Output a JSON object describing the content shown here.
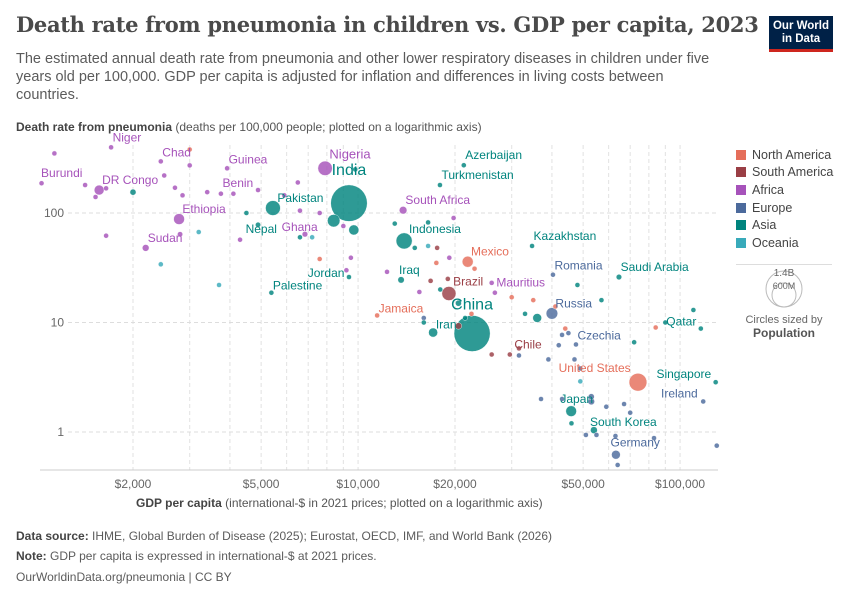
{
  "header": {
    "title": "Death rate from pneumonia in children vs. GDP per capita, 2023",
    "subtitle": "The estimated annual death rate from pneumonia and other lower respiratory diseases in children under five years old per 100,000. GDP per capita is adjusted for inflation and differences in living costs between countries.",
    "logo": "Our World in Data"
  },
  "footer": {
    "source_label": "Data source:",
    "source": "IHME, Global Burden of Disease (2025); Eurostat, OECD, IMF, and World Bank (2026)",
    "note_label": "Note:",
    "note": "GDP per capita is expressed in international-$ at 2021 prices.",
    "url": "OurWorldinData.org/pneumonia | CC BY"
  },
  "chart_data": {
    "type": "scatter",
    "title": "Death rate from pneumonia in children vs. GDP per capita, 2023",
    "ylabel_bold": "Death rate from pneumonia",
    "ylabel": "(deaths per 100,000 people; plotted on a logarithmic axis)",
    "xlabel_bold": "GDP per capita",
    "xlabel": "(international-$ in 2021 prices; plotted on a logarithmic axis)",
    "x_scale": "log",
    "y_scale": "log",
    "xlim": [
      1030,
      130000
    ],
    "ylim": [
      0.45,
      420
    ],
    "x_ticks": [
      {
        "v": 2000,
        "label": "$2,000"
      },
      {
        "v": 5000,
        "label": "$5,000"
      },
      {
        "v": 10000,
        "label": "$10,000"
      },
      {
        "v": 20000,
        "label": "$20,000"
      },
      {
        "v": 50000,
        "label": "$50,000"
      },
      {
        "v": 100000,
        "label": "$100,000"
      }
    ],
    "y_ticks": [
      {
        "v": 1,
        "label": "1"
      },
      {
        "v": 10,
        "label": "10"
      },
      {
        "v": 100,
        "label": "100"
      }
    ],
    "grid": true,
    "legend_position": "right",
    "regions": [
      {
        "name": "North America",
        "color": "#E56E5A"
      },
      {
        "name": "South America",
        "color": "#9A3E45"
      },
      {
        "name": "Africa",
        "color": "#A652BA"
      },
      {
        "name": "Europe",
        "color": "#4C6A9C"
      },
      {
        "name": "Asia",
        "color": "#00847E"
      },
      {
        "name": "Oceania",
        "color": "#38AABA"
      }
    ],
    "size_legend": {
      "title": "Circles sized by",
      "variable": "Population",
      "large": "1.4B",
      "small": "600M"
    },
    "points": [
      {
        "label": "Niger",
        "r": "Africa",
        "x": 1710,
        "y": 398,
        "pop": 27
      },
      {
        "label": "Chad",
        "r": "Africa",
        "x": 2440,
        "y": 296,
        "pop": 19
      },
      {
        "label": "Guinea",
        "r": "Africa",
        "x": 3920,
        "y": 256,
        "pop": 14
      },
      {
        "label": "Burundi",
        "r": "Africa",
        "x": 1040,
        "y": 187,
        "pop": 14
      },
      {
        "label": "DR Congo",
        "r": "Africa",
        "x": 1570,
        "y": 162,
        "pop": 105
      },
      {
        "label": "Benin",
        "r": "Africa",
        "x": 4890,
        "y": 162,
        "pop": 14
      },
      {
        "label": "Ethiopia",
        "r": "Africa",
        "x": 2780,
        "y": 88,
        "pop": 128
      },
      {
        "label": "Sudan",
        "r": "Africa",
        "x": 2190,
        "y": 48,
        "pop": 50
      },
      {
        "label": "Nigeria",
        "r": "Africa",
        "x": 7900,
        "y": 256,
        "pop": 225
      },
      {
        "label": "India",
        "r": "Asia",
        "x": 9370,
        "y": 123,
        "pop": 1440
      },
      {
        "label": "Pakistan",
        "r": "Asia",
        "x": 5440,
        "y": 111,
        "pop": 240
      },
      {
        "label": "Nepal",
        "r": "Asia",
        "x": 4890,
        "y": 78,
        "pop": 30
      },
      {
        "label": "Ghana",
        "r": "Africa",
        "x": 6840,
        "y": 64,
        "pop": 34
      },
      {
        "label": "Palestine",
        "r": "Asia",
        "x": 5380,
        "y": 18.7,
        "pop": 5
      },
      {
        "label": "Jordan",
        "r": "Asia",
        "x": 9370,
        "y": 26,
        "pop": 11
      },
      {
        "label": "Iraq",
        "r": "Asia",
        "x": 13600,
        "y": 24.5,
        "pop": 45
      },
      {
        "label": "Jamaica",
        "r": "North America",
        "x": 11460,
        "y": 11.6,
        "pop": 3
      },
      {
        "label": "South Africa",
        "r": "Africa",
        "x": 13800,
        "y": 106,
        "pop": 63
      },
      {
        "label": "Indonesia",
        "r": "Asia",
        "x": 13900,
        "y": 55.6,
        "pop": 280
      },
      {
        "label": "Azerbaijan",
        "r": "Asia",
        "x": 21300,
        "y": 273,
        "pop": 10
      },
      {
        "label": "Turkmenistan",
        "r": "Asia",
        "x": 17960,
        "y": 180,
        "pop": 7
      },
      {
        "label": "Mexico",
        "r": "North America",
        "x": 21900,
        "y": 35.9,
        "pop": 130
      },
      {
        "label": "Kazakhstan",
        "r": "Asia",
        "x": 34700,
        "y": 50,
        "pop": 20
      },
      {
        "label": "Romania",
        "r": "Europe",
        "x": 40300,
        "y": 27.3,
        "pop": 19
      },
      {
        "label": "Saudi Arabia",
        "r": "Asia",
        "x": 64600,
        "y": 26,
        "pop": 33
      },
      {
        "label": "Brazil",
        "r": "South America",
        "x": 19150,
        "y": 18.4,
        "pop": 215
      },
      {
        "label": "Mauritius",
        "r": "Africa",
        "x": 26600,
        "y": 18.7,
        "pop": 1.3
      },
      {
        "label": "Russia",
        "r": "Europe",
        "x": 40000,
        "y": 12.1,
        "pop": 145
      },
      {
        "label": "China",
        "r": "Asia",
        "x": 22600,
        "y": 7.94,
        "pop": 1410
      },
      {
        "label": "Iran",
        "r": "Asia",
        "x": 17100,
        "y": 8.1,
        "pop": 90
      },
      {
        "label": "Chile",
        "r": "South America",
        "x": 29600,
        "y": 5.1,
        "pop": 20
      },
      {
        "label": "Czechia",
        "r": "Europe",
        "x": 47500,
        "y": 6.3,
        "pop": 11
      },
      {
        "label": "Qatar",
        "r": "Asia",
        "x": 116000,
        "y": 8.8,
        "pop": 3
      },
      {
        "label": "United States",
        "r": "North America",
        "x": 74000,
        "y": 2.85,
        "pop": 340
      },
      {
        "label": "Singapore",
        "r": "Asia",
        "x": 129000,
        "y": 2.85,
        "pop": 6
      },
      {
        "label": "Ireland",
        "r": "Europe",
        "x": 118000,
        "y": 1.9,
        "pop": 5
      },
      {
        "label": "Japan",
        "r": "Asia",
        "x": 45900,
        "y": 1.55,
        "pop": 124
      },
      {
        "label": "South Korea",
        "r": "Asia",
        "x": 54000,
        "y": 1.04,
        "pop": 52
      },
      {
        "label": "Germany",
        "r": "Europe",
        "x": 63200,
        "y": 0.62,
        "pop": 84
      },
      {
        "r": "Africa",
        "x": 1140,
        "y": 350,
        "pop": 6
      },
      {
        "r": "Africa",
        "x": 1420,
        "y": 180,
        "pop": 8
      },
      {
        "r": "Africa",
        "x": 1530,
        "y": 140,
        "pop": 20
      },
      {
        "r": "Africa",
        "x": 1650,
        "y": 168,
        "pop": 12
      },
      {
        "r": "Africa",
        "x": 2500,
        "y": 220,
        "pop": 6
      },
      {
        "r": "Africa",
        "x": 2700,
        "y": 170,
        "pop": 8
      },
      {
        "r": "Africa",
        "x": 2850,
        "y": 145,
        "pop": 18
      },
      {
        "r": "Africa",
        "x": 3000,
        "y": 272,
        "pop": 5
      },
      {
        "r": "Africa",
        "x": 3400,
        "y": 155,
        "pop": 6
      },
      {
        "r": "Africa",
        "x": 3750,
        "y": 150,
        "pop": 9
      },
      {
        "r": "Africa",
        "x": 4100,
        "y": 150,
        "pop": 5
      },
      {
        "r": "Africa",
        "x": 1650,
        "y": 62,
        "pop": 5
      },
      {
        "r": "Africa",
        "x": 2800,
        "y": 64,
        "pop": 30
      },
      {
        "r": "Africa",
        "x": 4300,
        "y": 57,
        "pop": 5
      },
      {
        "r": "Africa",
        "x": 6500,
        "y": 190,
        "pop": 18
      },
      {
        "r": "Africa",
        "x": 5900,
        "y": 145,
        "pop": 10
      },
      {
        "r": "Africa",
        "x": 6600,
        "y": 105,
        "pop": 5
      },
      {
        "r": "Africa",
        "x": 7600,
        "y": 100,
        "pop": 12
      },
      {
        "r": "Africa",
        "x": 9000,
        "y": 76,
        "pop": 5
      },
      {
        "r": "Africa",
        "x": 9500,
        "y": 39,
        "pop": 4
      },
      {
        "r": "Africa",
        "x": 9200,
        "y": 30,
        "pop": 25
      },
      {
        "r": "Africa",
        "x": 12300,
        "y": 29,
        "pop": 5
      },
      {
        "r": "Africa",
        "x": 15500,
        "y": 19,
        "pop": 25
      },
      {
        "r": "Africa",
        "x": 19200,
        "y": 39,
        "pop": 4
      },
      {
        "r": "Africa",
        "x": 19800,
        "y": 90,
        "pop": 3
      },
      {
        "r": "Africa",
        "x": 26000,
        "y": 23,
        "pop": 3
      },
      {
        "r": "Asia",
        "x": 2000,
        "y": 155,
        "pop": 40
      },
      {
        "r": "Asia",
        "x": 4500,
        "y": 100,
        "pop": 6
      },
      {
        "r": "Asia",
        "x": 6600,
        "y": 60,
        "pop": 5
      },
      {
        "r": "Asia",
        "x": 9800,
        "y": 250,
        "pop": 12
      },
      {
        "r": "Asia",
        "x": 9700,
        "y": 70,
        "pop": 110
      },
      {
        "r": "Asia",
        "x": 8400,
        "y": 85,
        "pop": 170
      },
      {
        "r": "Asia",
        "x": 13000,
        "y": 80,
        "pop": 5
      },
      {
        "r": "Asia",
        "x": 16500,
        "y": 82,
        "pop": 4
      },
      {
        "r": "Asia",
        "x": 15000,
        "y": 48,
        "pop": 5
      },
      {
        "r": "Asia",
        "x": 18000,
        "y": 20,
        "pop": 3
      },
      {
        "r": "Asia",
        "x": 20500,
        "y": 15,
        "pop": 40
      },
      {
        "r": "Asia",
        "x": 21500,
        "y": 11,
        "pop": 4
      },
      {
        "r": "Asia",
        "x": 33000,
        "y": 12,
        "pop": 20
      },
      {
        "r": "Asia",
        "x": 36000,
        "y": 11,
        "pop": 85
      },
      {
        "r": "Asia",
        "x": 48000,
        "y": 22,
        "pop": 4
      },
      {
        "r": "Asia",
        "x": 57000,
        "y": 16,
        "pop": 3
      },
      {
        "r": "Asia",
        "x": 72000,
        "y": 6.6,
        "pop": 3
      },
      {
        "r": "Asia",
        "x": 90000,
        "y": 10,
        "pop": 3
      },
      {
        "r": "Asia",
        "x": 110000,
        "y": 13,
        "pop": 3
      },
      {
        "r": "Asia",
        "x": 16000,
        "y": 10,
        "pop": 3
      },
      {
        "r": "Asia",
        "x": 46000,
        "y": 1.2,
        "pop": 24
      },
      {
        "r": "Europe",
        "x": 16000,
        "y": 11,
        "pop": 8
      },
      {
        "r": "Europe",
        "x": 31600,
        "y": 5,
        "pop": 3
      },
      {
        "r": "Europe",
        "x": 39000,
        "y": 4.6,
        "pop": 10
      },
      {
        "r": "Europe",
        "x": 42000,
        "y": 6.2,
        "pop": 3
      },
      {
        "r": "Europe",
        "x": 43000,
        "y": 7.7,
        "pop": 3
      },
      {
        "r": "Europe",
        "x": 45000,
        "y": 8,
        "pop": 5
      },
      {
        "r": "Europe",
        "x": 47000,
        "y": 4.6,
        "pop": 3
      },
      {
        "r": "Europe",
        "x": 49000,
        "y": 3.8,
        "pop": 3
      },
      {
        "r": "Europe",
        "x": 37000,
        "y": 2,
        "pop": 3
      },
      {
        "r": "Europe",
        "x": 43000,
        "y": 2,
        "pop": 3
      },
      {
        "r": "Europe",
        "x": 53000,
        "y": 2.1,
        "pop": 40
      },
      {
        "r": "Europe",
        "x": 59000,
        "y": 1.7,
        "pop": 3
      },
      {
        "r": "Europe",
        "x": 67000,
        "y": 1.8,
        "pop": 3
      },
      {
        "r": "Europe",
        "x": 70000,
        "y": 1.5,
        "pop": 9
      },
      {
        "r": "Europe",
        "x": 51000,
        "y": 0.94,
        "pop": 5
      },
      {
        "r": "Europe",
        "x": 55000,
        "y": 0.94,
        "pop": 3
      },
      {
        "r": "Europe",
        "x": 63000,
        "y": 0.92,
        "pop": 3
      },
      {
        "r": "Europe",
        "x": 83000,
        "y": 0.88,
        "pop": 5
      },
      {
        "r": "Europe",
        "x": 130000,
        "y": 0.75,
        "pop": 1
      },
      {
        "r": "Europe",
        "x": 64000,
        "y": 0.5,
        "pop": 3
      },
      {
        "r": "Europe",
        "x": 53000,
        "y": 1.9,
        "pop": 48
      },
      {
        "r": "North America",
        "x": 3000,
        "y": 380,
        "pop": 11
      },
      {
        "r": "North America",
        "x": 7600,
        "y": 38,
        "pop": 9
      },
      {
        "r": "North America",
        "x": 17500,
        "y": 35,
        "pop": 5
      },
      {
        "r": "North America",
        "x": 23000,
        "y": 31,
        "pop": 4
      },
      {
        "r": "North America",
        "x": 30000,
        "y": 17,
        "pop": 3
      },
      {
        "r": "North America",
        "x": 35000,
        "y": 16,
        "pop": 3
      },
      {
        "r": "North America",
        "x": 41000,
        "y": 14,
        "pop": 3
      },
      {
        "r": "North America",
        "x": 44000,
        "y": 8.8,
        "pop": 2
      },
      {
        "r": "North America",
        "x": 84000,
        "y": 9,
        "pop": 1
      },
      {
        "r": "North America",
        "x": 22500,
        "y": 12,
        "pop": 3
      },
      {
        "r": "South America",
        "x": 17600,
        "y": 48,
        "pop": 8
      },
      {
        "r": "South America",
        "x": 19000,
        "y": 25,
        "pop": 12
      },
      {
        "r": "South America",
        "x": 20500,
        "y": 9.3,
        "pop": 46
      },
      {
        "r": "South America",
        "x": 31600,
        "y": 5.8,
        "pop": 3
      },
      {
        "r": "South America",
        "x": 26000,
        "y": 5.1,
        "pop": 3
      },
      {
        "r": "South America",
        "x": 16800,
        "y": 24,
        "pop": 28
      },
      {
        "r": "Oceania",
        "x": 2440,
        "y": 34,
        "pop": 1
      },
      {
        "r": "Oceania",
        "x": 3200,
        "y": 67,
        "pop": 10
      },
      {
        "r": "Oceania",
        "x": 3700,
        "y": 22,
        "pop": 1
      },
      {
        "r": "Oceania",
        "x": 7200,
        "y": 60,
        "pop": 1
      },
      {
        "r": "Oceania",
        "x": 16500,
        "y": 50,
        "pop": 1
      },
      {
        "r": "Oceania",
        "x": 49000,
        "y": 2.9,
        "pop": 27
      }
    ]
  }
}
